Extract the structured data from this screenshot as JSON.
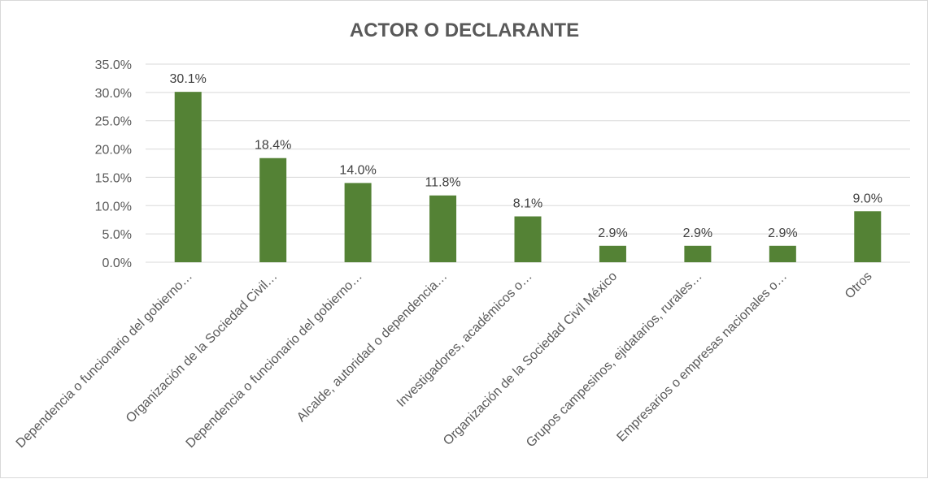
{
  "chart_data": {
    "type": "bar",
    "title": "ACTOR O DECLARANTE",
    "xlabel": "",
    "ylabel": "",
    "categories": [
      "Dependencia o funcionario del gobierno…",
      "Organización de la Sociedad Civil…",
      "Dependencia o funcionario del gobierno…",
      "Alcalde, autoridad o dependencia…",
      "Investigadores, académicos o…",
      "Organización de la Sociedad Civil México",
      "Grupos campesinos, ejidatarios, rurales…",
      "Empresarios o empresas nacionales o…",
      "Otros"
    ],
    "values": [
      30.1,
      18.4,
      14.0,
      11.8,
      8.1,
      2.9,
      2.9,
      2.9,
      9.0
    ],
    "data_labels": [
      "30.1%",
      "18.4%",
      "14.0%",
      "11.8%",
      "8.1%",
      "2.9%",
      "2.9%",
      "2.9%",
      "9.0%"
    ],
    "ylim": [
      0,
      35
    ],
    "yticks": [
      0,
      5,
      10,
      15,
      20,
      25,
      30,
      35
    ],
    "ytick_labels": [
      "0.0%",
      "5.0%",
      "10.0%",
      "15.0%",
      "20.0%",
      "25.0%",
      "30.0%",
      "35.0%"
    ],
    "grid": true,
    "legend": "none",
    "bar_color": "#548235"
  }
}
